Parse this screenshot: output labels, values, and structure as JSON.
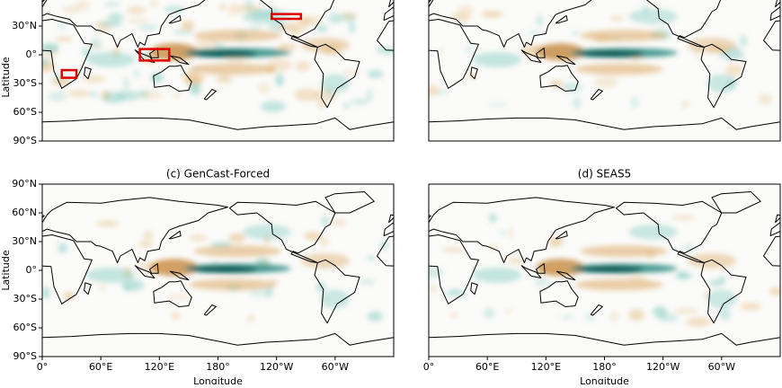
{
  "top_left": {
    "ylabel": "Latitude",
    "yticks": [
      "30°N",
      "0°",
      "30°S",
      "60°S",
      "90°S"
    ]
  },
  "bottom_left": {
    "title": "(c) GenCast-Forced",
    "ylabel": "Latitude",
    "yticks": [
      "90°N",
      "60°N",
      "30°N",
      "0°",
      "30°S",
      "60°S",
      "90°S"
    ],
    "xticks": [
      "0°",
      "60°E",
      "120°E",
      "180°",
      "120°W",
      "60°W"
    ],
    "xlabel": "Longitude"
  },
  "bottom_right": {
    "title": "(d) SEAS5",
    "xticks": [
      "0°",
      "60°E",
      "120°E",
      "180°",
      "120°W",
      "60°W"
    ],
    "xlabel": "Longitude"
  }
}
